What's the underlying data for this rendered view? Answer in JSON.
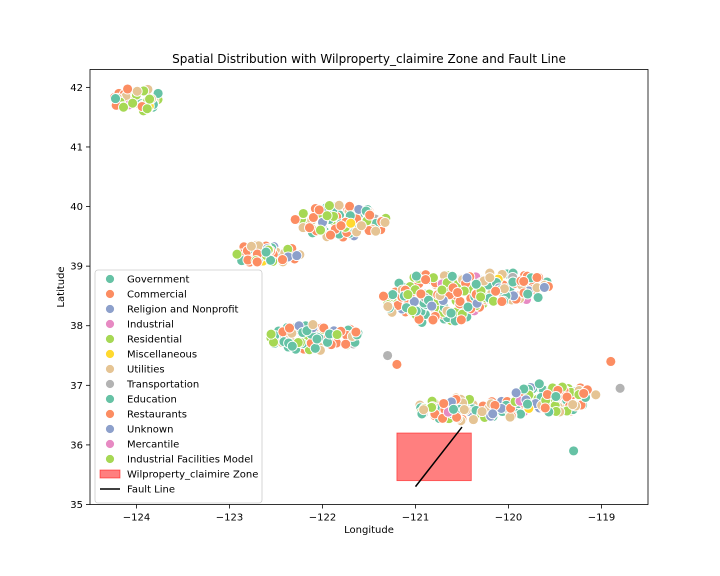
{
  "chart_data": {
    "type": "scatter",
    "title": "Spatial Distribution with Wilproperty_claimire Zone and Fault Line",
    "xlabel": "Longitude",
    "ylabel": "Latitude",
    "xlim": [
      -124.5,
      -118.5
    ],
    "ylim": [
      35.0,
      42.3
    ],
    "xticks": [
      -124,
      -123,
      -122,
      -121,
      -120,
      -119
    ],
    "xtick_labels": [
      "−124",
      "−123",
      "−122",
      "−121",
      "−120",
      "−119"
    ],
    "yticks": [
      35,
      36,
      37,
      38,
      39,
      40,
      41,
      42
    ],
    "ytick_labels": [
      "35",
      "36",
      "37",
      "38",
      "39",
      "40",
      "41",
      "42"
    ],
    "grid": false,
    "legend_position": "lower-left",
    "series": [
      {
        "name": "Government",
        "color": "#66c2a5"
      },
      {
        "name": "Commercial",
        "color": "#fc8d62"
      },
      {
        "name": "Religion and Nonprofit",
        "color": "#8da0cb"
      },
      {
        "name": "Industrial",
        "color": "#e78ac3"
      },
      {
        "name": "Residential",
        "color": "#a6d854"
      },
      {
        "name": "Miscellaneous",
        "color": "#ffd92f"
      },
      {
        "name": "Utilities",
        "color": "#e5c494"
      },
      {
        "name": "Transportation",
        "color": "#b3b3b3"
      },
      {
        "name": "Education",
        "color": "#66c2a5"
      },
      {
        "name": "Restaurants",
        "color": "#fc8d62"
      },
      {
        "name": "Unknown",
        "color": "#8da0cb"
      },
      {
        "name": "Mercantile",
        "color": "#e78ac3"
      },
      {
        "name": "Industrial Facilities Model",
        "color": "#a6d854"
      }
    ],
    "clusters": [
      {
        "cx": -124.0,
        "cy": 41.8,
        "rx": 0.28,
        "ry": 0.2,
        "n": 45
      },
      {
        "cx": -122.6,
        "cy": 39.2,
        "rx": 0.4,
        "ry": 0.16,
        "n": 60
      },
      {
        "cx": -121.8,
        "cy": 39.75,
        "rx": 0.5,
        "ry": 0.28,
        "n": 110
      },
      {
        "cx": -122.1,
        "cy": 37.8,
        "rx": 0.55,
        "ry": 0.22,
        "n": 85
      },
      {
        "cx": -120.8,
        "cy": 38.45,
        "rx": 0.55,
        "ry": 0.42,
        "n": 150
      },
      {
        "cx": -120.05,
        "cy": 38.65,
        "rx": 0.55,
        "ry": 0.25,
        "n": 90
      },
      {
        "cx": -120.4,
        "cy": 36.6,
        "rx": 0.6,
        "ry": 0.2,
        "n": 90
      },
      {
        "cx": -119.5,
        "cy": 36.8,
        "rx": 0.45,
        "ry": 0.25,
        "n": 90
      }
    ],
    "outliers": [
      {
        "x": -119.3,
        "y": 35.9,
        "series": "Government"
      },
      {
        "x": -118.9,
        "y": 37.4,
        "series": "Commercial"
      },
      {
        "x": -118.8,
        "y": 36.95,
        "series": "Transportation"
      },
      {
        "x": -121.2,
        "y": 37.35,
        "series": "Commercial"
      },
      {
        "x": -121.3,
        "y": 37.5,
        "series": "Transportation"
      }
    ],
    "zone": {
      "label": "Wilproperty_claimire Zone",
      "x0": -121.2,
      "x1": -120.4,
      "y0": 35.4,
      "y1": 36.2,
      "color": "#ff0000",
      "alpha": 0.5
    },
    "fault_line": {
      "label": "Fault Line",
      "x": [
        -121.0,
        -120.5
      ],
      "y": [
        35.3,
        36.3
      ],
      "color": "#000000"
    }
  }
}
